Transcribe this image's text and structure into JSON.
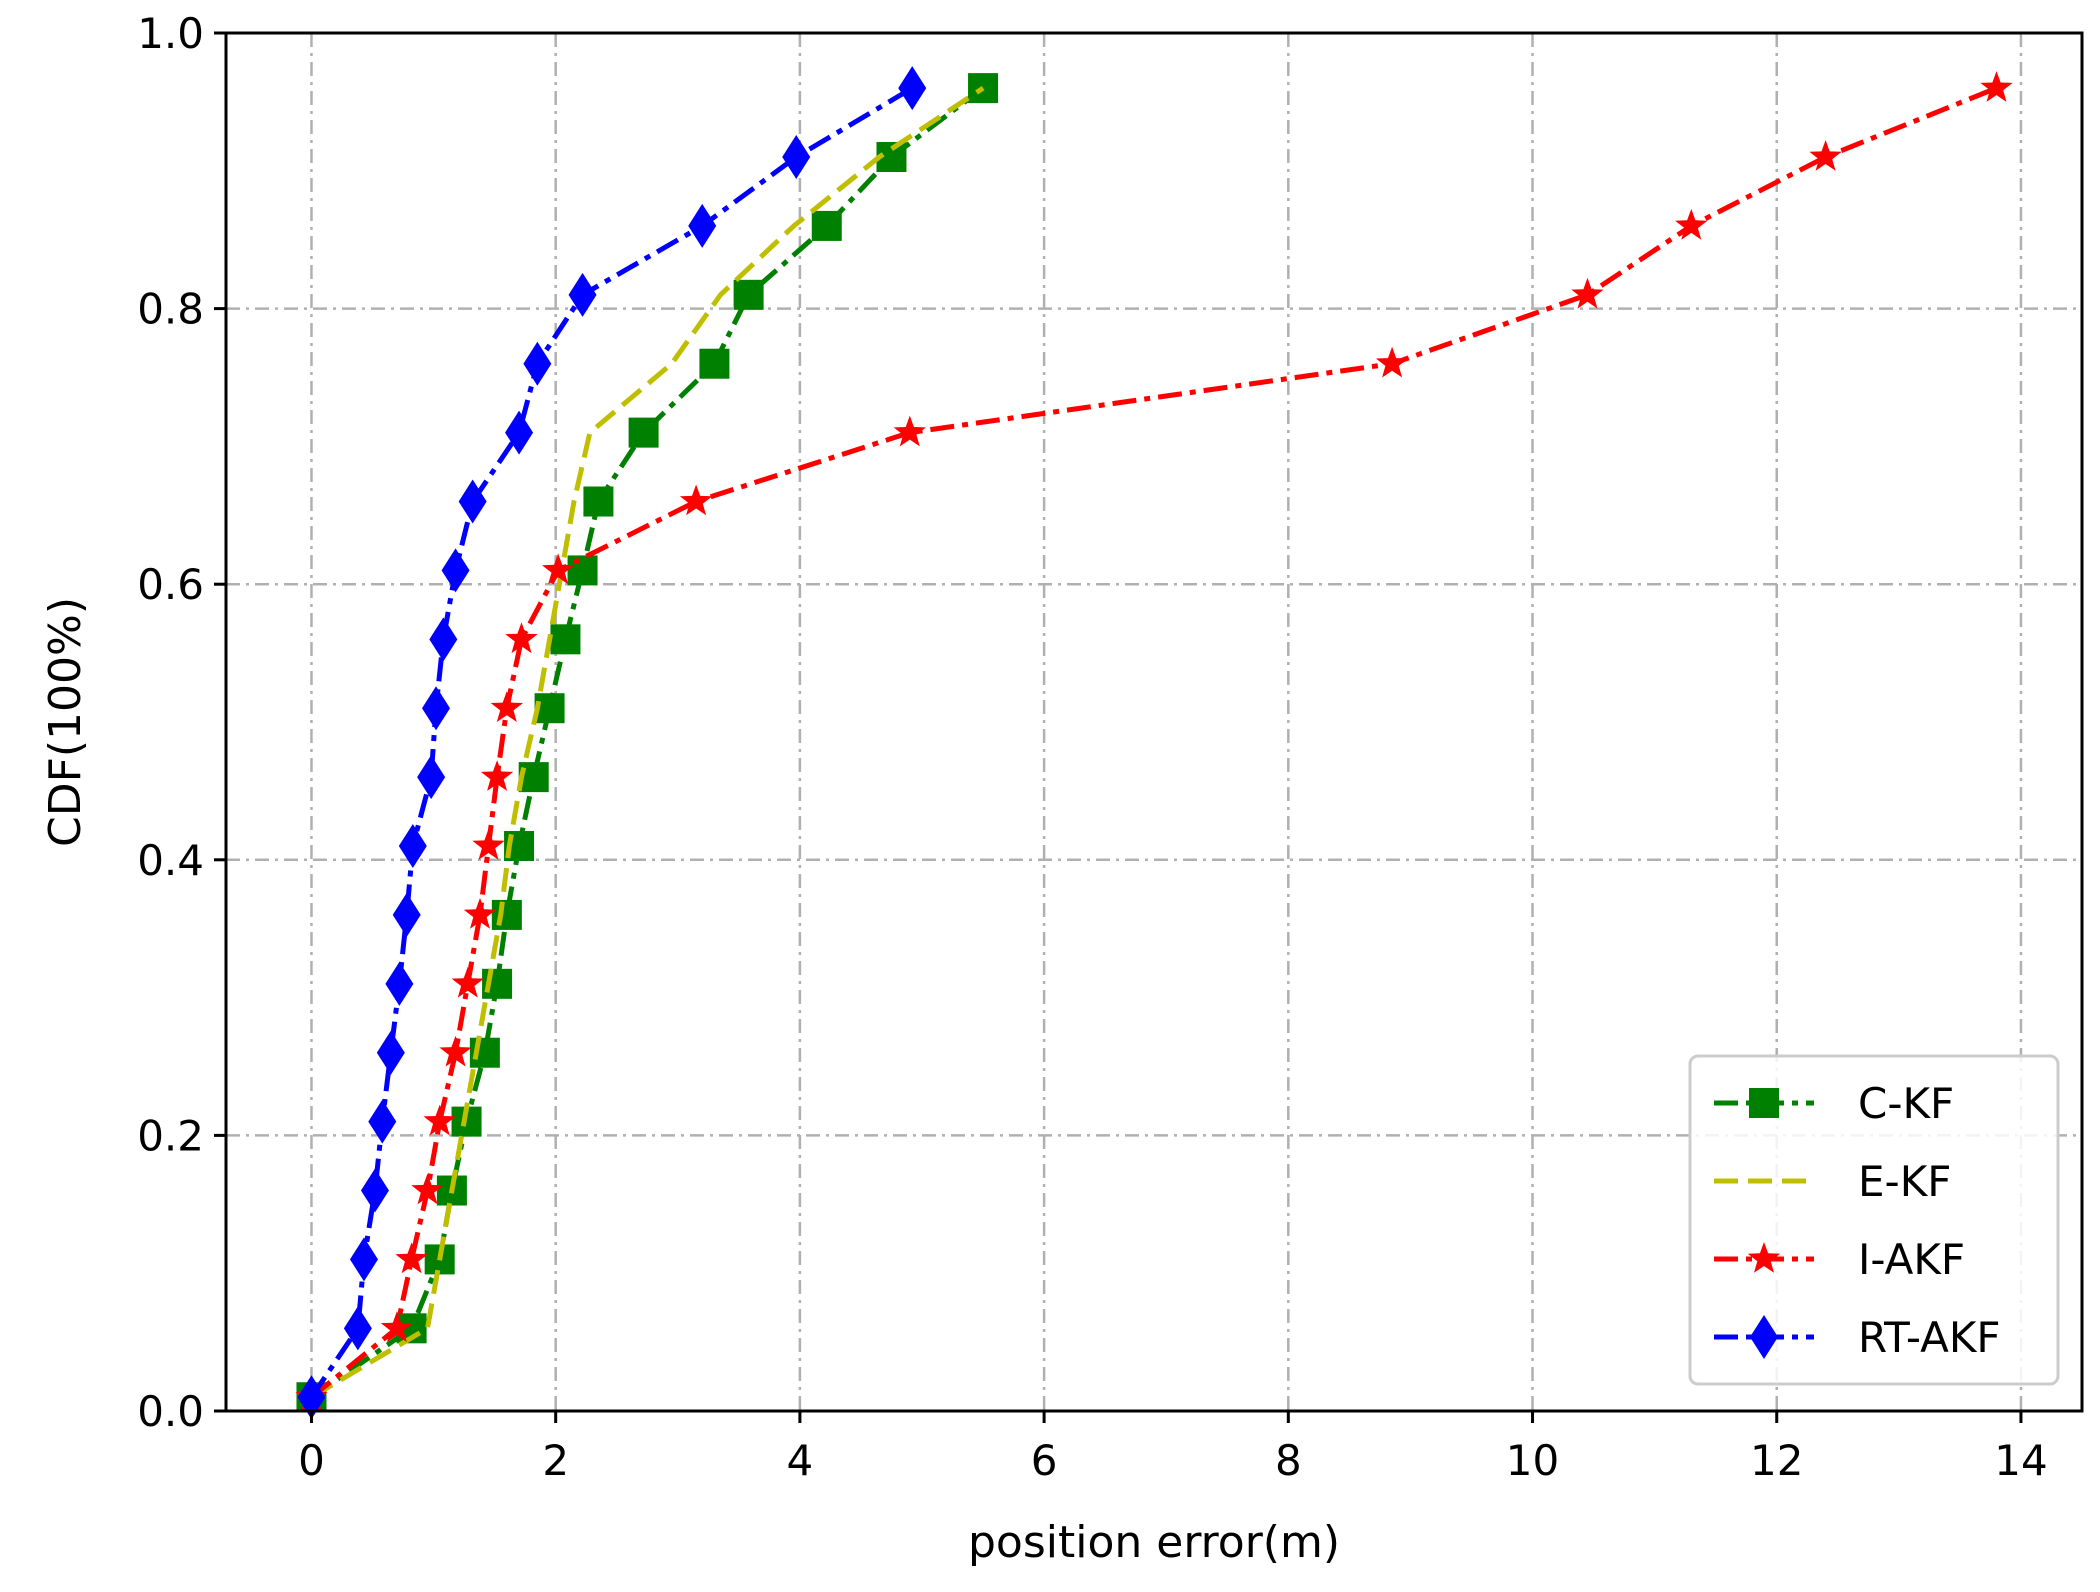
{
  "chart_data": {
    "type": "line",
    "xlabel": "position error(m)",
    "ylabel": "CDF(100%)",
    "xlim": [
      -0.7,
      14.5
    ],
    "ylim": [
      0.0,
      1.0
    ],
    "xticks": [
      "0",
      "2",
      "4",
      "6",
      "8",
      "10",
      "12",
      "14"
    ],
    "yticks": [
      "0.0",
      "0.2",
      "0.4",
      "0.6",
      "0.8",
      "1.0"
    ],
    "grid": true,
    "legend_position": "bottom-right",
    "series": [
      {
        "name": "C-KF",
        "color": "#008000",
        "line_style": "dash-dot",
        "marker": "square",
        "x": [
          0.0,
          0.82,
          1.05,
          1.15,
          1.27,
          1.42,
          1.52,
          1.6,
          1.7,
          1.82,
          1.95,
          2.08,
          2.22,
          2.35,
          2.72,
          3.3,
          3.58,
          4.22,
          4.75,
          5.5
        ],
        "y": [
          0.01,
          0.06,
          0.11,
          0.16,
          0.21,
          0.26,
          0.31,
          0.36,
          0.41,
          0.46,
          0.51,
          0.56,
          0.61,
          0.66,
          0.71,
          0.76,
          0.81,
          0.86,
          0.91,
          0.96
        ]
      },
      {
        "name": "E-KF",
        "color": "#bfbf00",
        "line_style": "dashed",
        "marker": "none",
        "x": [
          0.0,
          0.95,
          1.05,
          1.15,
          1.25,
          1.35,
          1.45,
          1.55,
          1.62,
          1.72,
          1.85,
          1.95,
          2.05,
          2.15,
          2.28,
          2.95,
          3.35,
          3.95,
          4.65,
          5.5
        ],
        "y": [
          0.01,
          0.06,
          0.11,
          0.16,
          0.21,
          0.26,
          0.31,
          0.36,
          0.41,
          0.46,
          0.51,
          0.56,
          0.61,
          0.66,
          0.71,
          0.76,
          0.81,
          0.86,
          0.91,
          0.96
        ]
      },
      {
        "name": "I-AKF",
        "color": "#ff0000",
        "line_style": "dash-dot",
        "marker": "star",
        "x": [
          0.0,
          0.7,
          0.82,
          0.95,
          1.05,
          1.18,
          1.28,
          1.38,
          1.45,
          1.52,
          1.6,
          1.72,
          2.02,
          3.15,
          4.9,
          8.85,
          10.45,
          11.3,
          12.4,
          13.8
        ],
        "y": [
          0.01,
          0.06,
          0.11,
          0.16,
          0.21,
          0.26,
          0.31,
          0.36,
          0.41,
          0.46,
          0.51,
          0.56,
          0.61,
          0.66,
          0.71,
          0.76,
          0.81,
          0.86,
          0.91,
          0.96
        ]
      },
      {
        "name": "RT-AKF",
        "color": "#0000ff",
        "line_style": "dash-dot",
        "marker": "diamond",
        "x": [
          0.0,
          0.38,
          0.43,
          0.52,
          0.58,
          0.65,
          0.72,
          0.78,
          0.83,
          0.98,
          1.02,
          1.08,
          1.18,
          1.32,
          1.7,
          1.85,
          2.22,
          3.2,
          3.97,
          4.92
        ],
        "y": [
          0.01,
          0.06,
          0.11,
          0.16,
          0.21,
          0.26,
          0.31,
          0.36,
          0.41,
          0.46,
          0.51,
          0.56,
          0.61,
          0.66,
          0.71,
          0.76,
          0.81,
          0.86,
          0.91,
          0.96
        ]
      }
    ]
  }
}
